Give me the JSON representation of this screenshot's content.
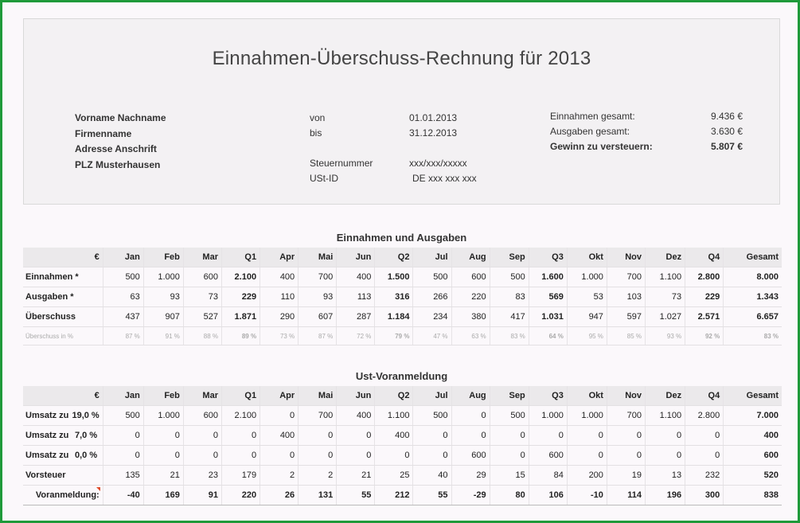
{
  "title": "Einnahmen-Überschuss-Rechnung für 2013",
  "address": [
    "Vorname Nachname",
    "Firmenname",
    "Adresse Anschrift",
    "PLZ Musterhausen"
  ],
  "period": {
    "from_label": "von",
    "from_value": "01.01.2013",
    "to_label": "bis",
    "to_value": "31.12.2013",
    "tax_label": "Steuernummer",
    "tax_value": "xxx/xxx/xxxxx",
    "ust_label": "USt-ID",
    "ust_value": "DE xxx xxx xxx"
  },
  "totals": [
    {
      "label": "Einnahmen gesamt:",
      "value": "9.436 €",
      "bold": false
    },
    {
      "label": "Ausgaben gesamt:",
      "value": "3.630 €",
      "bold": false
    },
    {
      "label": "Gewinn zu versteuern:",
      "value": "5.807 €",
      "bold": true
    }
  ],
  "table1": {
    "title": "Einnahmen und Ausgaben",
    "headers": [
      "€",
      "Jan",
      "Feb",
      "Mar",
      "Q1",
      "Apr",
      "Mai",
      "Jun",
      "Q2",
      "Jul",
      "Aug",
      "Sep",
      "Q3",
      "Okt",
      "Nov",
      "Dez",
      "Q4",
      "Gesamt"
    ],
    "rows": [
      {
        "label": "Einnahmen *",
        "values": [
          "500",
          "1.000",
          "600",
          "2.100",
          "400",
          "700",
          "400",
          "1.500",
          "500",
          "600",
          "500",
          "1.600",
          "1.000",
          "700",
          "1.100",
          "2.800",
          "8.000"
        ]
      },
      {
        "label": "Ausgaben *",
        "values": [
          "63",
          "93",
          "73",
          "229",
          "110",
          "93",
          "113",
          "316",
          "266",
          "220",
          "83",
          "569",
          "53",
          "103",
          "73",
          "229",
          "1.343"
        ]
      },
      {
        "label": "Überschuss",
        "values": [
          "437",
          "907",
          "527",
          "1.871",
          "290",
          "607",
          "287",
          "1.184",
          "234",
          "380",
          "417",
          "1.031",
          "947",
          "597",
          "1.027",
          "2.571",
          "6.657"
        ]
      }
    ],
    "pct": {
      "label": "Überschuss in %",
      "values": [
        "87 %",
        "91 %",
        "88 %",
        "89 %",
        "73 %",
        "87 %",
        "72 %",
        "79 %",
        "47 %",
        "63 %",
        "83 %",
        "64 %",
        "95 %",
        "85 %",
        "93 %",
        "92 %",
        "83 %"
      ]
    }
  },
  "table2": {
    "title": "Ust-Voranmeldung",
    "headers": [
      "€",
      "Jan",
      "Feb",
      "Mar",
      "Q1",
      "Apr",
      "Mai",
      "Jun",
      "Q2",
      "Jul",
      "Aug",
      "Sep",
      "Q3",
      "Okt",
      "Nov",
      "Dez",
      "Q4",
      "Gesamt"
    ],
    "rows": [
      {
        "label": "Umsatz zu",
        "rate": "19,0 %",
        "values": [
          "500",
          "1.000",
          "600",
          "2.100",
          "0",
          "700",
          "400",
          "1.100",
          "500",
          "0",
          "500",
          "1.000",
          "1.000",
          "700",
          "1.100",
          "2.800",
          "7.000"
        ]
      },
      {
        "label": "Umsatz zu",
        "rate": "7,0 %",
        "values": [
          "0",
          "0",
          "0",
          "0",
          "400",
          "0",
          "0",
          "400",
          "0",
          "0",
          "0",
          "0",
          "0",
          "0",
          "0",
          "0",
          "400"
        ]
      },
      {
        "label": "Umsatz zu",
        "rate": "0,0 %",
        "values": [
          "0",
          "0",
          "0",
          "0",
          "0",
          "0",
          "0",
          "0",
          "0",
          "600",
          "0",
          "600",
          "0",
          "0",
          "0",
          "0",
          "600"
        ]
      },
      {
        "label": "Vorsteuer",
        "rate": "",
        "values": [
          "135",
          "21",
          "23",
          "179",
          "2",
          "2",
          "21",
          "25",
          "40",
          "29",
          "15",
          "84",
          "200",
          "19",
          "13",
          "232",
          "520"
        ]
      }
    ],
    "sum": {
      "label": "Voranmeldung:",
      "values": [
        "-40",
        "169",
        "91",
        "220",
        "26",
        "131",
        "55",
        "212",
        "55",
        "-29",
        "80",
        "106",
        "-10",
        "114",
        "196",
        "300",
        "838"
      ]
    }
  },
  "colors": {
    "frame": "#1f9a3a",
    "header_bg": "#ebe9eb",
    "marker": "#e04a2a"
  }
}
